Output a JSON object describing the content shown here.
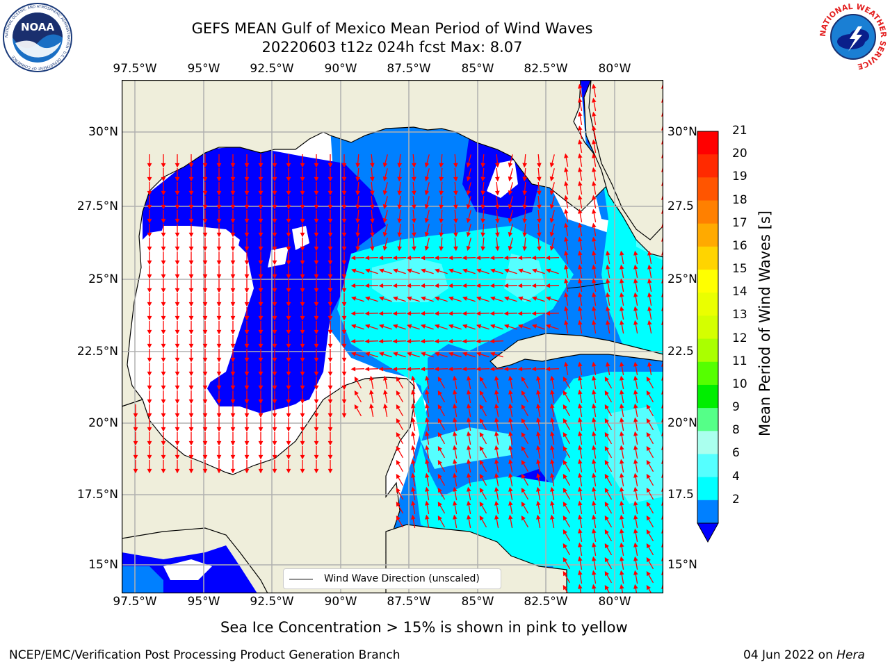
{
  "title": {
    "line1": "GEFS MEAN Gulf of Mexico Mean Period of Wind Waves",
    "line2": "20220603 t12z 024h fcst   Max: 8.07"
  },
  "axes": {
    "lon_ticks_top": [
      "97.5°W",
      "95°W",
      "92.5°W",
      "90°W",
      "87.5°W",
      "85°W",
      "82.5°W",
      "80°W"
    ],
    "lon_ticks_bottom": [
      "97.5°W",
      "95°W",
      "92.5°W",
      "90°W",
      "87.5°W",
      "85°W",
      "82.5°W",
      "80°W"
    ],
    "lat_ticks_left": [
      "30°N",
      "27.5°N",
      "25°N",
      "22.5°N",
      "20°N",
      "17.5°N",
      "15°N"
    ],
    "lat_ticks_right": [
      "30°N",
      "27.5",
      "25°N",
      "22.5",
      "20°N",
      "17.5",
      "15°N"
    ]
  },
  "colorbar": {
    "label": "Mean Period of Wind Waves [s]",
    "ticks": [
      "21",
      "20",
      "19",
      "18",
      "17",
      "16",
      "15",
      "14",
      "13",
      "12",
      "11",
      "10",
      "9",
      "8",
      "6",
      "4",
      "2"
    ],
    "colors": [
      "#ff0000",
      "#ff2a00",
      "#ff5500",
      "#ff8000",
      "#ffaa00",
      "#ffd400",
      "#ffff00",
      "#eaff00",
      "#d4ff00",
      "#aaff00",
      "#55ff00",
      "#00ee00",
      "#55ff88",
      "#aaffee",
      "#55ffff",
      "#00ffff",
      "#0080ff"
    ],
    "under_color": "#0000ff"
  },
  "legend": {
    "label": "Wind Wave Direction (unscaled)"
  },
  "map_colors": {
    "land": "#efeedb",
    "ocean_low": "#ffffff",
    "p2_4": "#0000ff",
    "p4_6": "#0080ff",
    "p6_8": "#00ffff",
    "p8_9": "#55ffff",
    "arrow": "#ff0000"
  },
  "subtitle": "Sea Ice Concentration > 15% is shown in pink to yellow",
  "footer": {
    "left": "NCEP/EMC/Verification Post Processing Product Generation Branch",
    "date": "04 Jun 2022 on ",
    "machine": "Hera"
  },
  "logos": {
    "noaa_text": "NOAA",
    "noaa_ring": "NATIONAL OCEANIC AND ATMOSPHERIC ADMINISTRATION · U.S. DEPARTMENT OF COMMERCE",
    "nws_ring": "NATIONAL WEATHER SERVICE"
  }
}
